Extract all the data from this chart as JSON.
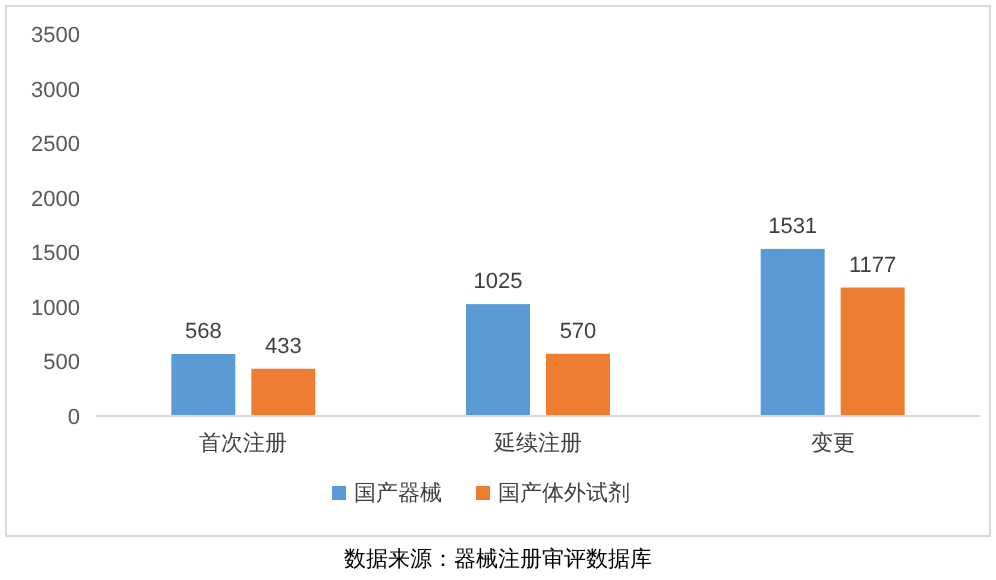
{
  "chart_data": {
    "type": "bar",
    "categories": [
      "首次注册",
      "延续注册",
      "变更"
    ],
    "series": [
      {
        "name": "国产器械",
        "color": "#5b9bd5",
        "values": [
          568,
          1025,
          1531
        ]
      },
      {
        "name": "国产体外试剂",
        "color": "#ed7d31",
        "values": [
          433,
          570,
          1177
        ]
      }
    ],
    "ylim": [
      0,
      3500
    ],
    "yticks": [
      0,
      500,
      1000,
      1500,
      2000,
      2500,
      3000,
      3500
    ],
    "grid": false,
    "data_labels": true,
    "legend": "bottom",
    "annotations": [
      "数据来源：器械注册审评数据库"
    ]
  }
}
